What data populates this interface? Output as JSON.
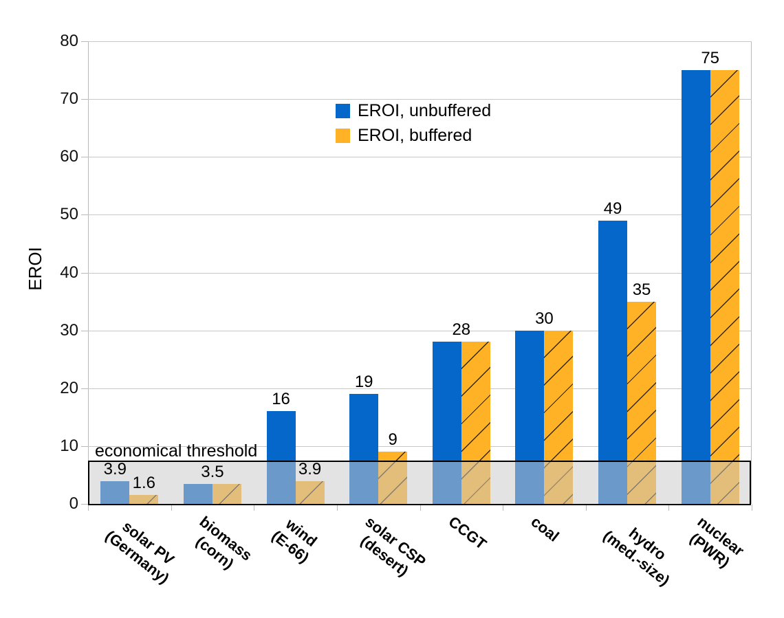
{
  "chart_data": {
    "type": "bar",
    "title": "",
    "xlabel": "",
    "ylabel": "EROI",
    "ylim": [
      0,
      80
    ],
    "ytick_step": 10,
    "grid": true,
    "legend_position": "upper-center",
    "legend": [
      {
        "name": "EROI, unbuffered",
        "color": "#0667CA",
        "hatch": "none"
      },
      {
        "name": "EROI, buffered",
        "color": "#FFB226",
        "hatch": "/"
      }
    ],
    "categories": [
      {
        "lines": [
          "solar PV",
          "(Germany)"
        ],
        "unbuffered": 3.9,
        "buffered": 1.6,
        "labels": {
          "unbuffered": "3.9",
          "buffered": "1.6"
        }
      },
      {
        "lines": [
          "biomass",
          "(corn)"
        ],
        "unbuffered": 3.5,
        "buffered": 3.5,
        "labels": {
          "shared": "3.5"
        }
      },
      {
        "lines": [
          "wind",
          "(E-66)"
        ],
        "unbuffered": 16,
        "buffered": 3.9,
        "labels": {
          "unbuffered": "16",
          "buffered": "3.9"
        }
      },
      {
        "lines": [
          "solar CSP",
          "(desert)"
        ],
        "unbuffered": 19,
        "buffered": 9,
        "labels": {
          "unbuffered": "19",
          "buffered": "9"
        }
      },
      {
        "lines": [
          "CCGT"
        ],
        "unbuffered": 28,
        "buffered": 28,
        "labels": {
          "shared": "28"
        }
      },
      {
        "lines": [
          "coal"
        ],
        "unbuffered": 30,
        "buffered": 30,
        "labels": {
          "shared": "30"
        }
      },
      {
        "lines": [
          "hydro",
          "(med.-size)"
        ],
        "unbuffered": 49,
        "buffered": 35,
        "labels": {
          "unbuffered": "49",
          "buffered": "35"
        }
      },
      {
        "lines": [
          "nuclear",
          "(PWR)"
        ],
        "unbuffered": 75,
        "buffered": 75,
        "labels": {
          "shared": "75"
        }
      }
    ],
    "annotation": {
      "text": "economical threshold",
      "band_from": 0,
      "band_to": 7.5
    }
  },
  "colors": {
    "series_unbuffered": "#0667CA",
    "series_buffered": "#FFB226",
    "threshold_fill": "rgba(202,202,202,0.52)",
    "threshold_border": "#000000",
    "gridline": "#c7c7c7",
    "axis": "#b9b9b9",
    "text": "#000000"
  }
}
